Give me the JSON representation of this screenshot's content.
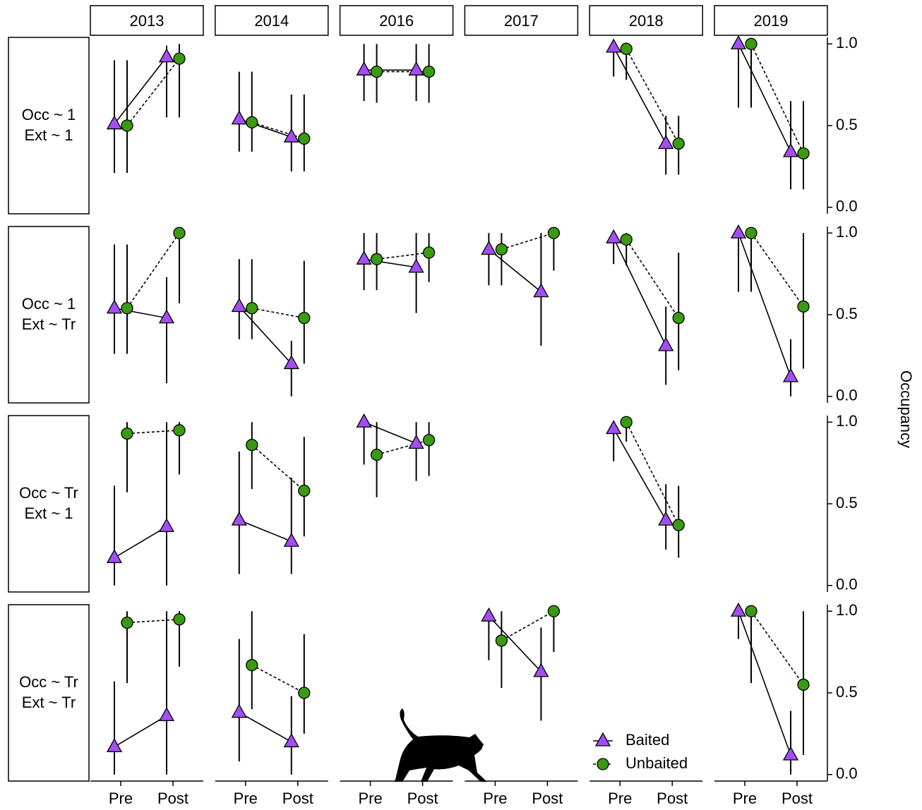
{
  "chart_data": {
    "type": "pointrange",
    "columns": [
      "2013",
      "2014",
      "2016",
      "2017",
      "2018",
      "2019"
    ],
    "rows": [
      [
        "Occ ~ 1",
        "Ext ~ 1"
      ],
      [
        "Occ ~ 1",
        "Ext ~ Tr"
      ],
      [
        "Occ ~ Tr",
        "Ext ~ 1"
      ],
      [
        "Occ ~ Tr",
        "Ext ~ Tr"
      ]
    ],
    "categories": [
      "Pre",
      "Post"
    ],
    "y_label": "Occupancy",
    "ylim": [
      -0.04,
      1.04
    ],
    "yticks": [
      {
        "value": 0,
        "label": "0.0"
      },
      {
        "value": 0.5,
        "label": "0.5"
      },
      {
        "value": 1,
        "label": "1.0"
      }
    ],
    "series": [
      {
        "name": "Baited",
        "color": "#a24ef2",
        "marker": "triangle",
        "linestyle": "solid"
      },
      {
        "name": "Unbaited",
        "color": "#3a9a12",
        "marker": "circle",
        "linestyle": "dashed"
      }
    ],
    "panels": [
      [
        {
          "series": [
            {
              "values": [
                0.51,
                0.92
              ],
              "lower": [
                0.21,
                0.55
              ],
              "upper": [
                0.9,
                0.99
              ]
            },
            {
              "values": [
                0.5,
                0.91
              ],
              "lower": [
                0.21,
                0.55
              ],
              "upper": [
                0.9,
                1.0
              ]
            }
          ]
        },
        {
          "series": [
            {
              "values": [
                0.54,
                0.43
              ],
              "lower": [
                0.34,
                0.22
              ],
              "upper": [
                0.83,
                0.69
              ]
            },
            {
              "values": [
                0.52,
                0.42
              ],
              "lower": [
                0.34,
                0.22
              ],
              "upper": [
                0.83,
                0.69
              ]
            }
          ]
        },
        {
          "series": [
            {
              "values": [
                0.84,
                0.84
              ],
              "lower": [
                0.65,
                0.65
              ],
              "upper": [
                1.0,
                1.0
              ]
            },
            {
              "values": [
                0.83,
                0.83
              ],
              "lower": [
                0.64,
                0.64
              ],
              "upper": [
                1.0,
                1.0
              ]
            }
          ]
        },
        null,
        {
          "series": [
            {
              "values": [
                0.98,
                0.39
              ],
              "lower": [
                0.8,
                0.2
              ],
              "upper": [
                1.0,
                0.56
              ]
            },
            {
              "values": [
                0.97,
                0.39
              ],
              "lower": [
                0.78,
                0.2
              ],
              "upper": [
                1.0,
                0.56
              ]
            }
          ]
        },
        {
          "series": [
            {
              "values": [
                1.0,
                0.34
              ],
              "lower": [
                0.61,
                0.11
              ],
              "upper": [
                1.0,
                0.65
              ]
            },
            {
              "values": [
                1.0,
                0.33
              ],
              "lower": [
                0.61,
                0.11
              ],
              "upper": [
                1.0,
                0.65
              ]
            }
          ]
        }
      ],
      [
        {
          "series": [
            {
              "values": [
                0.54,
                0.48
              ],
              "lower": [
                0.26,
                0.08
              ],
              "upper": [
                0.93,
                0.73
              ]
            },
            {
              "values": [
                0.54,
                1.0
              ],
              "lower": [
                0.26,
                0.57
              ],
              "upper": [
                0.93,
                1.0
              ]
            }
          ]
        },
        {
          "series": [
            {
              "values": [
                0.55,
                0.2
              ],
              "lower": [
                0.35,
                0.0
              ],
              "upper": [
                0.84,
                0.34
              ]
            },
            {
              "values": [
                0.54,
                0.48
              ],
              "lower": [
                0.35,
                0.2
              ],
              "upper": [
                0.84,
                0.83
              ]
            }
          ]
        },
        {
          "series": [
            {
              "values": [
                0.84,
                0.79
              ],
              "lower": [
                0.65,
                0.51
              ],
              "upper": [
                1.0,
                1.0
              ]
            },
            {
              "values": [
                0.84,
                0.88
              ],
              "lower": [
                0.65,
                0.7
              ],
              "upper": [
                1.0,
                1.0
              ]
            }
          ]
        },
        {
          "series": [
            {
              "values": [
                0.9,
                0.64
              ],
              "lower": [
                0.68,
                0.31
              ],
              "upper": [
                1.0,
                1.0
              ]
            },
            {
              "values": [
                0.9,
                1.0
              ],
              "lower": [
                0.68,
                0.77
              ],
              "upper": [
                1.0,
                1.0
              ]
            }
          ]
        },
        {
          "series": [
            {
              "values": [
                0.97,
                0.31
              ],
              "lower": [
                0.81,
                0.07
              ],
              "upper": [
                1.0,
                0.55
              ]
            },
            {
              "values": [
                0.96,
                0.48
              ],
              "lower": [
                0.8,
                0.16
              ],
              "upper": [
                1.0,
                0.88
              ]
            }
          ]
        },
        {
          "series": [
            {
              "values": [
                1.0,
                0.12
              ],
              "lower": [
                0.64,
                0.0
              ],
              "upper": [
                1.0,
                0.35
              ]
            },
            {
              "values": [
                1.0,
                0.55
              ],
              "lower": [
                0.64,
                0.17
              ],
              "upper": [
                1.0,
                1.0
              ]
            }
          ]
        }
      ],
      [
        {
          "series": [
            {
              "values": [
                0.17,
                0.36
              ],
              "lower": [
                0.0,
                0.0
              ],
              "upper": [
                0.61,
                1.0
              ]
            },
            {
              "values": [
                0.93,
                0.95
              ],
              "lower": [
                0.57,
                0.68
              ],
              "upper": [
                1.0,
                1.0
              ]
            }
          ]
        },
        {
          "series": [
            {
              "values": [
                0.4,
                0.27
              ],
              "lower": [
                0.07,
                0.07
              ],
              "upper": [
                0.82,
                0.66
              ]
            },
            {
              "values": [
                0.86,
                0.58
              ],
              "lower": [
                0.59,
                0.3
              ],
              "upper": [
                1.0,
                0.91
              ]
            }
          ]
        },
        {
          "series": [
            {
              "values": [
                1.0,
                0.87
              ],
              "lower": [
                0.74,
                0.64
              ],
              "upper": [
                1.0,
                1.0
              ]
            },
            {
              "values": [
                0.8,
                0.89
              ],
              "lower": [
                0.54,
                0.67
              ],
              "upper": [
                1.0,
                1.0
              ]
            }
          ]
        },
        null,
        {
          "series": [
            {
              "values": [
                0.96,
                0.4
              ],
              "lower": [
                0.76,
                0.22
              ],
              "upper": [
                1.0,
                0.62
              ]
            },
            {
              "values": [
                1.0,
                0.37
              ],
              "lower": [
                0.88,
                0.17
              ],
              "upper": [
                1.0,
                0.61
              ]
            }
          ]
        },
        null
      ],
      [
        {
          "series": [
            {
              "values": [
                0.17,
                0.36
              ],
              "lower": [
                0.0,
                0.0
              ],
              "upper": [
                0.57,
                1.0
              ]
            },
            {
              "values": [
                0.93,
                0.95
              ],
              "lower": [
                0.56,
                0.66
              ],
              "upper": [
                1.0,
                1.0
              ]
            }
          ]
        },
        {
          "series": [
            {
              "values": [
                0.38,
                0.2
              ],
              "lower": [
                0.08,
                0.0
              ],
              "upper": [
                0.83,
                0.48
              ]
            },
            {
              "values": [
                0.67,
                0.5
              ],
              "lower": [
                0.4,
                0.25
              ],
              "upper": [
                1.0,
                0.86
              ]
            }
          ]
        },
        null,
        {
          "series": [
            {
              "values": [
                0.97,
                0.63
              ],
              "lower": [
                0.7,
                0.33
              ],
              "upper": [
                1.0,
                0.9
              ]
            },
            {
              "values": [
                0.82,
                1.0
              ],
              "lower": [
                0.53,
                0.75
              ],
              "upper": [
                1.0,
                1.0
              ]
            }
          ]
        },
        null,
        {
          "series": [
            {
              "values": [
                1.0,
                0.12
              ],
              "lower": [
                0.83,
                0.0
              ],
              "upper": [
                1.0,
                0.39
              ]
            },
            {
              "values": [
                1.0,
                0.55
              ],
              "lower": [
                0.56,
                0.12
              ],
              "upper": [
                1.0,
                1.0
              ]
            }
          ]
        }
      ]
    ]
  }
}
